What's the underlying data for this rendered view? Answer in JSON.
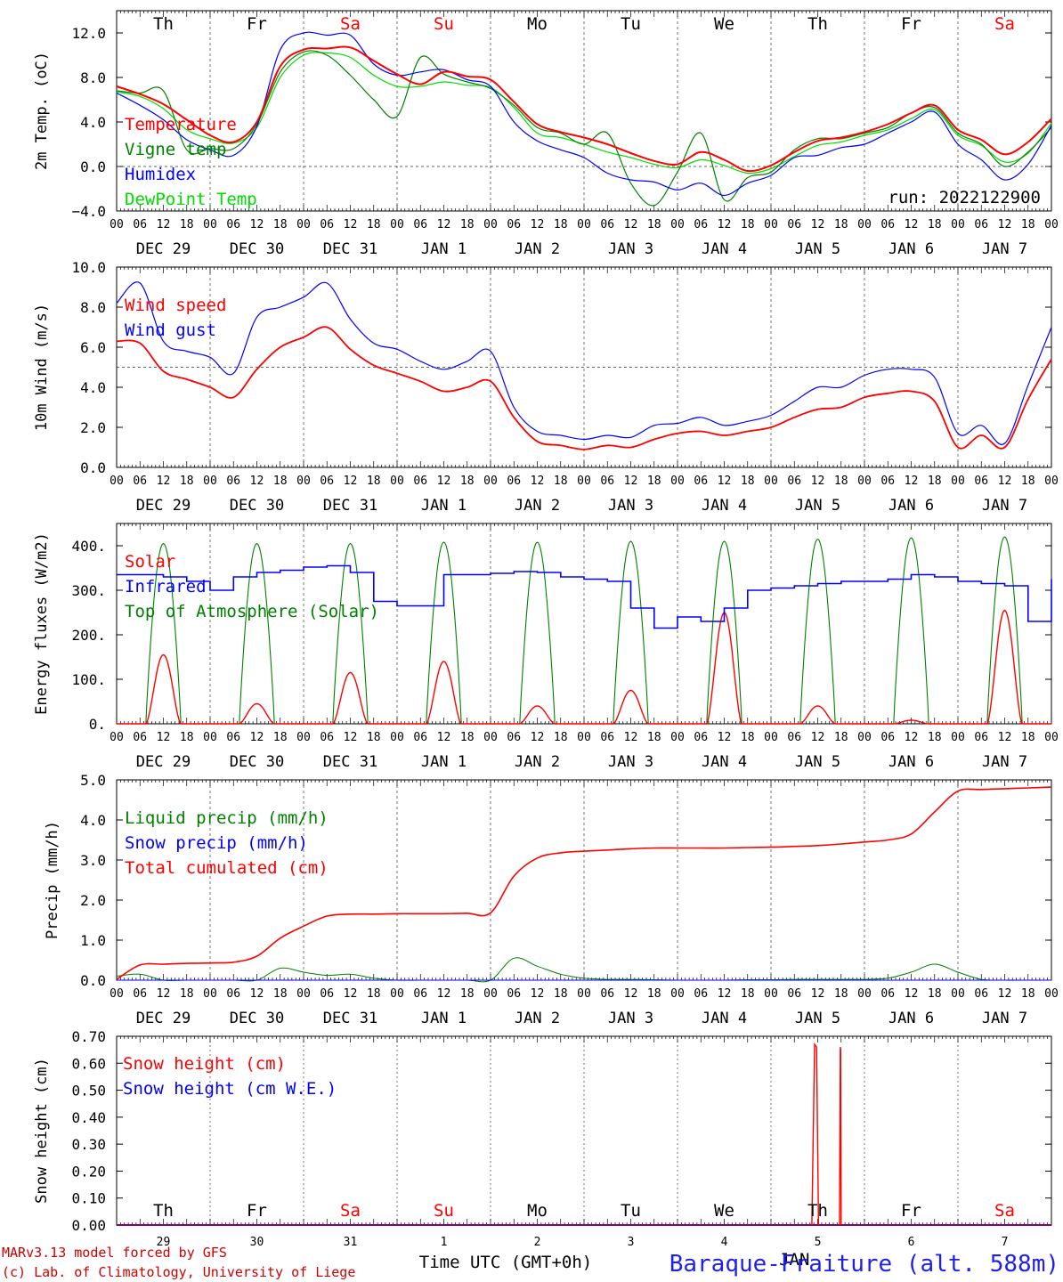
{
  "chart_data": [
    {
      "type": "line",
      "ylabel": "2m Temp. (oC)",
      "ylim": [
        -4,
        14
      ],
      "yticks": [
        "12.0",
        "8.0",
        "4.0",
        "0.0",
        "−4.0"
      ],
      "ytick_values": [
        12,
        8,
        4,
        0,
        -4
      ],
      "hline": 0,
      "legend": [
        "Temperature",
        "Vigne temp",
        "Humidex",
        "DewPoint Temp"
      ],
      "legend_colors": [
        "#ff0000",
        "#008000",
        "#0000ff",
        "#00dd00"
      ],
      "annotation": "run: 2022122900",
      "day_names": [
        "Th",
        "Fr",
        "Sa",
        "Su",
        "Mo",
        "Tu",
        "We",
        "Th",
        "Fr",
        "Sa"
      ],
      "day_name_colors": [
        "#000000",
        "#000000",
        "#ff0000",
        "#ff0000",
        "#000000",
        "#000000",
        "#000000",
        "#000000",
        "#000000",
        "#ff0000"
      ],
      "x_hours": [
        0,
        6,
        12,
        18,
        24,
        30,
        36,
        42,
        48,
        54,
        60,
        66,
        72,
        78,
        84,
        90,
        96,
        102,
        108,
        114,
        120,
        126,
        132,
        138,
        144,
        150,
        156,
        162,
        168,
        174,
        180,
        186,
        192,
        198,
        204,
        210,
        216,
        222,
        228,
        234,
        240
      ],
      "series": [
        {
          "name": "Temperature",
          "color": "#ff0000",
          "values": [
            7.2,
            6.5,
            5.6,
            4.2,
            2.8,
            2.2,
            4.0,
            9.0,
            10.5,
            10.6,
            10.7,
            9.5,
            8.3,
            7.4,
            8.5,
            8.1,
            7.8,
            5.8,
            3.8,
            3.1,
            2.6,
            2.0,
            1.2,
            0.5,
            0.2,
            1.3,
            0.6,
            -0.4,
            0.1,
            1.3,
            2.3,
            2.6,
            3.1,
            3.8,
            4.8,
            5.5,
            3.3,
            2.4,
            1.1,
            2.2,
            4.3
          ]
        },
        {
          "name": "Vigne temp",
          "color": "#008000",
          "values": [
            6.8,
            6.6,
            6.8,
            1.5,
            1.6,
            1.6,
            3.8,
            8.5,
            10.3,
            10.0,
            8.2,
            6.0,
            4.5,
            9.8,
            8.3,
            7.6,
            7.0,
            5.5,
            3.5,
            3.0,
            2.0,
            3.0,
            -1.5,
            -3.5,
            -0.5,
            3.0,
            -3.0,
            -1.0,
            -0.5,
            1.5,
            2.5,
            2.5,
            3.0,
            3.5,
            4.8,
            5.3,
            3.0,
            2.0,
            0.0,
            1.3,
            3.5
          ]
        },
        {
          "name": "Humidex",
          "color": "#0000ff",
          "values": [
            6.6,
            5.5,
            4.2,
            2.4,
            1.5,
            1.0,
            3.6,
            10.5,
            12.0,
            11.8,
            11.8,
            9.2,
            8.2,
            8.5,
            8.7,
            7.8,
            7.2,
            4.0,
            2.3,
            1.5,
            0.8,
            -0.6,
            -1.2,
            -1.4,
            -2.1,
            -1.5,
            -2.6,
            -1.5,
            -0.8,
            0.8,
            1.0,
            1.7,
            2.0,
            3.0,
            4.0,
            4.9,
            2.0,
            0.6,
            -1.2,
            0.2,
            3.7
          ]
        },
        {
          "name": "DewPoint Temp",
          "color": "#00dd00",
          "values": [
            6.7,
            6.3,
            5.2,
            3.3,
            2.5,
            2.1,
            3.5,
            8.0,
            10.0,
            10.2,
            9.8,
            8.2,
            7.2,
            7.2,
            7.6,
            7.3,
            7.1,
            5.3,
            3.0,
            2.6,
            2.0,
            1.3,
            0.8,
            0.2,
            -0.1,
            0.6,
            0.1,
            -0.6,
            -0.2,
            0.9,
            1.9,
            2.2,
            2.8,
            3.3,
            4.3,
            5.1,
            2.8,
            1.9,
            0.4,
            1.2,
            3.9
          ]
        }
      ]
    },
    {
      "type": "line",
      "ylabel": "10m Wind (m/s)",
      "ylim": [
        0,
        10
      ],
      "yticks": [
        "10.0",
        "8.0",
        "6.0",
        "4.0",
        "2.0",
        "0.0"
      ],
      "ytick_values": [
        10,
        8,
        6,
        4,
        2,
        0
      ],
      "hline": 5,
      "legend": [
        "Wind speed",
        "Wind gust"
      ],
      "legend_colors": [
        "#ff0000",
        "#0000ff"
      ],
      "x_hours": [
        0,
        6,
        12,
        18,
        24,
        30,
        36,
        42,
        48,
        54,
        60,
        66,
        72,
        78,
        84,
        90,
        96,
        102,
        108,
        114,
        120,
        126,
        132,
        138,
        144,
        150,
        156,
        162,
        168,
        174,
        180,
        186,
        192,
        198,
        204,
        210,
        216,
        222,
        228,
        234,
        240
      ],
      "series": [
        {
          "name": "Wind speed",
          "color": "#ff0000",
          "values": [
            6.3,
            6.2,
            4.8,
            4.4,
            4.0,
            3.5,
            4.9,
            6.0,
            6.5,
            7.0,
            5.9,
            5.1,
            4.7,
            4.3,
            3.8,
            4.0,
            4.3,
            2.5,
            1.3,
            1.1,
            0.9,
            1.1,
            1.0,
            1.4,
            1.7,
            1.8,
            1.6,
            1.8,
            2.0,
            2.5,
            2.9,
            3.0,
            3.5,
            3.7,
            3.8,
            3.3,
            1.0,
            1.6,
            1.0,
            3.4,
            5.4
          ]
        },
        {
          "name": "Wind gust",
          "color": "#0000ff",
          "values": [
            8.2,
            9.2,
            6.3,
            5.8,
            5.5,
            4.7,
            7.5,
            8.0,
            8.5,
            9.2,
            7.4,
            6.2,
            5.9,
            5.3,
            4.9,
            5.3,
            5.8,
            3.0,
            1.8,
            1.6,
            1.4,
            1.6,
            1.5,
            2.1,
            2.2,
            2.5,
            2.1,
            2.3,
            2.6,
            3.3,
            4.0,
            4.0,
            4.6,
            4.9,
            4.9,
            4.5,
            1.7,
            2.1,
            1.2,
            4.1,
            7.0
          ]
        }
      ]
    },
    {
      "type": "line",
      "ylabel": "Energy fluxes (W/m2)",
      "ylim": [
        0,
        450
      ],
      "yticks": [
        "400.",
        "300.",
        "200.",
        "100.",
        "0."
      ],
      "ytick_values": [
        400,
        300,
        200,
        100,
        0
      ],
      "legend": [
        "Solar",
        "Infrared",
        "Top of Atmosphere (Solar)"
      ],
      "legend_colors": [
        "#ff0000",
        "#0000ff",
        "#008000"
      ],
      "daily_peaks": {
        "toa": [
          405,
          405,
          405,
          408,
          408,
          410,
          410,
          415,
          418,
          420
        ],
        "solar": [
          155,
          45,
          115,
          140,
          40,
          75,
          250,
          40,
          8,
          255
        ]
      },
      "series": [
        {
          "name": "Infrared",
          "color": "#0000ff",
          "x_hours": [
            0,
            6,
            12,
            18,
            24,
            30,
            36,
            42,
            48,
            54,
            60,
            66,
            72,
            78,
            84,
            90,
            96,
            102,
            108,
            114,
            120,
            126,
            132,
            138,
            144,
            150,
            156,
            162,
            168,
            174,
            180,
            186,
            192,
            198,
            204,
            210,
            216,
            222,
            228,
            234,
            240
          ],
          "values": [
            335,
            335,
            330,
            320,
            300,
            330,
            340,
            345,
            352,
            355,
            340,
            275,
            265,
            265,
            335,
            335,
            338,
            342,
            340,
            330,
            325,
            320,
            260,
            215,
            240,
            230,
            260,
            300,
            305,
            310,
            315,
            320,
            320,
            325,
            335,
            330,
            320,
            315,
            310,
            230,
            325
          ]
        }
      ]
    },
    {
      "type": "line",
      "ylabel": "Precip (mm/h)",
      "ylim": [
        0,
        5
      ],
      "yticks": [
        "5.0",
        "4.0",
        "3.0",
        "2.0",
        "1.0",
        "0.0"
      ],
      "ytick_values": [
        5,
        4,
        3,
        2,
        1,
        0
      ],
      "legend": [
        "Liquid precip (mm/h)",
        "Snow precip (mm/h)",
        "Total cumulated (cm)"
      ],
      "legend_colors": [
        "#008000",
        "#0000ff",
        "#ff0000"
      ],
      "x_hours": [
        0,
        6,
        12,
        18,
        24,
        30,
        36,
        42,
        48,
        54,
        60,
        66,
        72,
        78,
        84,
        90,
        96,
        102,
        108,
        114,
        120,
        126,
        132,
        138,
        144,
        150,
        156,
        162,
        168,
        174,
        180,
        186,
        192,
        198,
        204,
        210,
        216,
        222,
        228,
        234,
        240
      ],
      "series": [
        {
          "name": "Total cumulated (cm)",
          "color": "#ff0000",
          "values": [
            0.02,
            0.38,
            0.4,
            0.42,
            0.43,
            0.45,
            0.6,
            1.05,
            1.35,
            1.6,
            1.65,
            1.65,
            1.66,
            1.66,
            1.66,
            1.67,
            1.68,
            2.6,
            3.05,
            3.18,
            3.22,
            3.25,
            3.28,
            3.3,
            3.3,
            3.3,
            3.3,
            3.31,
            3.32,
            3.34,
            3.36,
            3.4,
            3.45,
            3.5,
            3.65,
            4.2,
            4.72,
            4.76,
            4.78,
            4.8,
            4.82
          ]
        },
        {
          "name": "Liquid precip (mm/h)",
          "color": "#008000",
          "values": [
            0.1,
            0.15,
            0.0,
            0.0,
            0.0,
            0.0,
            0.0,
            0.3,
            0.2,
            0.12,
            0.15,
            0.05,
            0.0,
            0.0,
            0.0,
            0.0,
            0.0,
            0.55,
            0.35,
            0.15,
            0.05,
            0.02,
            0.02,
            0.01,
            0.0,
            0.0,
            0.0,
            0.01,
            0.01,
            0.02,
            0.02,
            0.02,
            0.02,
            0.05,
            0.2,
            0.4,
            0.2,
            0.02,
            0.0,
            0.0,
            0.0
          ]
        },
        {
          "name": "Snow precip (mm/h)",
          "color": "#0000ff",
          "values": [
            0.0,
            0.0,
            0.0,
            0.0,
            0.0,
            0.0,
            0.0,
            0.0,
            0.0,
            0.0,
            0.0,
            0.0,
            0.0,
            0.0,
            0.0,
            0.0,
            0.0,
            0.0,
            0.0,
            0.0,
            0.0,
            0.0,
            0.0,
            0.0,
            0.0,
            0.0,
            0.0,
            0.0,
            0.0,
            0.0,
            0.0,
            0.0,
            0.0,
            0.0,
            0.0,
            0.0,
            0.0,
            0.0,
            0.0,
            0.0,
            0.0
          ]
        }
      ]
    },
    {
      "type": "line",
      "ylabel": "Snow height (cm)",
      "ylim": [
        0,
        0.7
      ],
      "yticks": [
        "0.70",
        "0.60",
        "0.50",
        "0.40",
        "0.30",
        "0.20",
        "0.10",
        "0.00"
      ],
      "ytick_values": [
        0.7,
        0.6,
        0.5,
        0.4,
        0.3,
        0.2,
        0.1,
        0.0
      ],
      "legend": [
        "Snow height (cm)",
        "Snow height (cm W.E.)"
      ],
      "legend_colors": [
        "#ff0000",
        "#0000ff"
      ],
      "bottom_day_numbers": [
        "29",
        "30",
        "31",
        "1",
        "2",
        "3",
        "4",
        "5",
        "6",
        "7"
      ],
      "bottom_month": "JAN",
      "xlabel": "Time UTC (GMT+0h)",
      "spikes": [
        {
          "start_hour": 178.5,
          "peak_hour": 179.2,
          "end_hour": 180.2,
          "peak": 0.67
        },
        {
          "start_hour": 185.6,
          "peak_hour": 185.8,
          "end_hour": 186.0,
          "peak": 0.66
        }
      ]
    }
  ],
  "axis": {
    "hour_ticks": [
      "00",
      "06",
      "12",
      "18"
    ],
    "dates": [
      "DEC 29",
      "DEC 30",
      "DEC 31",
      "JAN  1",
      "JAN  2",
      "JAN  3",
      "JAN  4",
      "JAN  5",
      "JAN  6",
      "JAN  7"
    ]
  },
  "footer": {
    "model_line": "MARv3.13 model forced by GFS",
    "credit_line": "(c) Lab. of Climatology, University of Liege",
    "time_label": "Time UTC (GMT+0h)",
    "station": "Baraque-Fraiture (alt. 588m)"
  }
}
